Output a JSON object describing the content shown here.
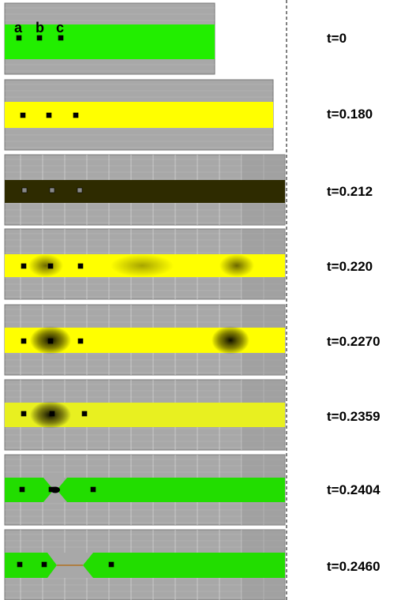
{
  "frames": [
    {
      "time": "t=0",
      "state": "initial",
      "band_color": "#22ee00",
      "domain_width": "short"
    },
    {
      "time": "t=0.180",
      "state": "stretched",
      "band_color": "#ffff00"
    },
    {
      "time": "t=0.212",
      "state": "dark",
      "band_color": "#2e2b00"
    },
    {
      "time": "t=0.220",
      "state": "localizing",
      "band_color": "#ffff00"
    },
    {
      "time": "t=0.2270",
      "state": "necking",
      "band_color": "#ffff00"
    },
    {
      "time": "t=0.2359",
      "state": "necking",
      "band_color": "#e8f020"
    },
    {
      "time": "t=0.2404",
      "state": "fracture",
      "band_color": "#22dd00"
    },
    {
      "time": "t=0.2460",
      "state": "separated",
      "band_color": "#22dd00"
    }
  ],
  "point_labels": [
    "a",
    "b",
    "c"
  ],
  "colors": {
    "background": "#a8a8a8",
    "grid": "#c8c8c8",
    "separator": "#000000",
    "marker": "#000000"
  }
}
